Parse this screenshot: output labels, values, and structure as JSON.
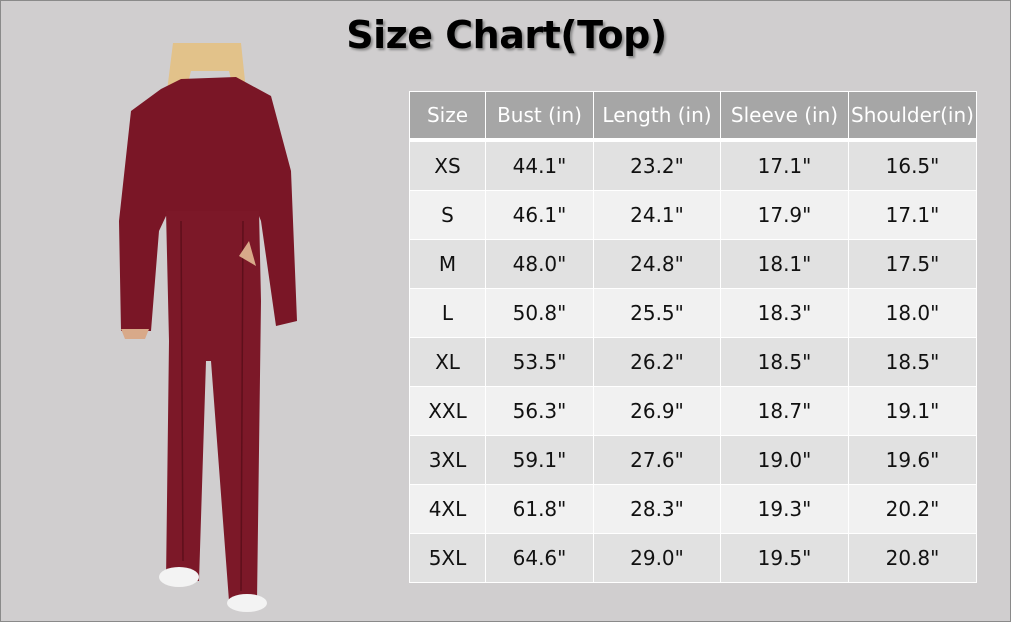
{
  "title": "Size Chart(Top)",
  "colors": {
    "background": "#d0cecf",
    "header": "#a6a6a6",
    "row_odd": "#e1e1e1",
    "row_even": "#f1f1f1",
    "garment": "#7a1626"
  },
  "image": "model-wearing-burgundy-sweatshirt-and-wide-leg-pants",
  "table": {
    "headers": [
      "Size",
      "Bust (in)",
      "Length (in)",
      "Sleeve (in)",
      "Shoulder(in)"
    ],
    "rows": [
      [
        "XS",
        "44.1\"",
        "23.2\"",
        "17.1\"",
        "16.5\""
      ],
      [
        "S",
        "46.1\"",
        "24.1\"",
        "17.9\"",
        "17.1\""
      ],
      [
        "M",
        "48.0\"",
        "24.8\"",
        "18.1\"",
        "17.5\""
      ],
      [
        "L",
        "50.8\"",
        "25.5\"",
        "18.3\"",
        "18.0\""
      ],
      [
        "XL",
        "53.5\"",
        "26.2\"",
        "18.5\"",
        "18.5\""
      ],
      [
        "XXL",
        "56.3\"",
        "26.9\"",
        "18.7\"",
        "19.1\""
      ],
      [
        "3XL",
        "59.1\"",
        "27.6\"",
        "19.0\"",
        "19.6\""
      ],
      [
        "4XL",
        "61.8\"",
        "28.3\"",
        "19.3\"",
        "20.2\""
      ],
      [
        "5XL",
        "64.6\"",
        "29.0\"",
        "19.5\"",
        "20.8\""
      ]
    ]
  }
}
